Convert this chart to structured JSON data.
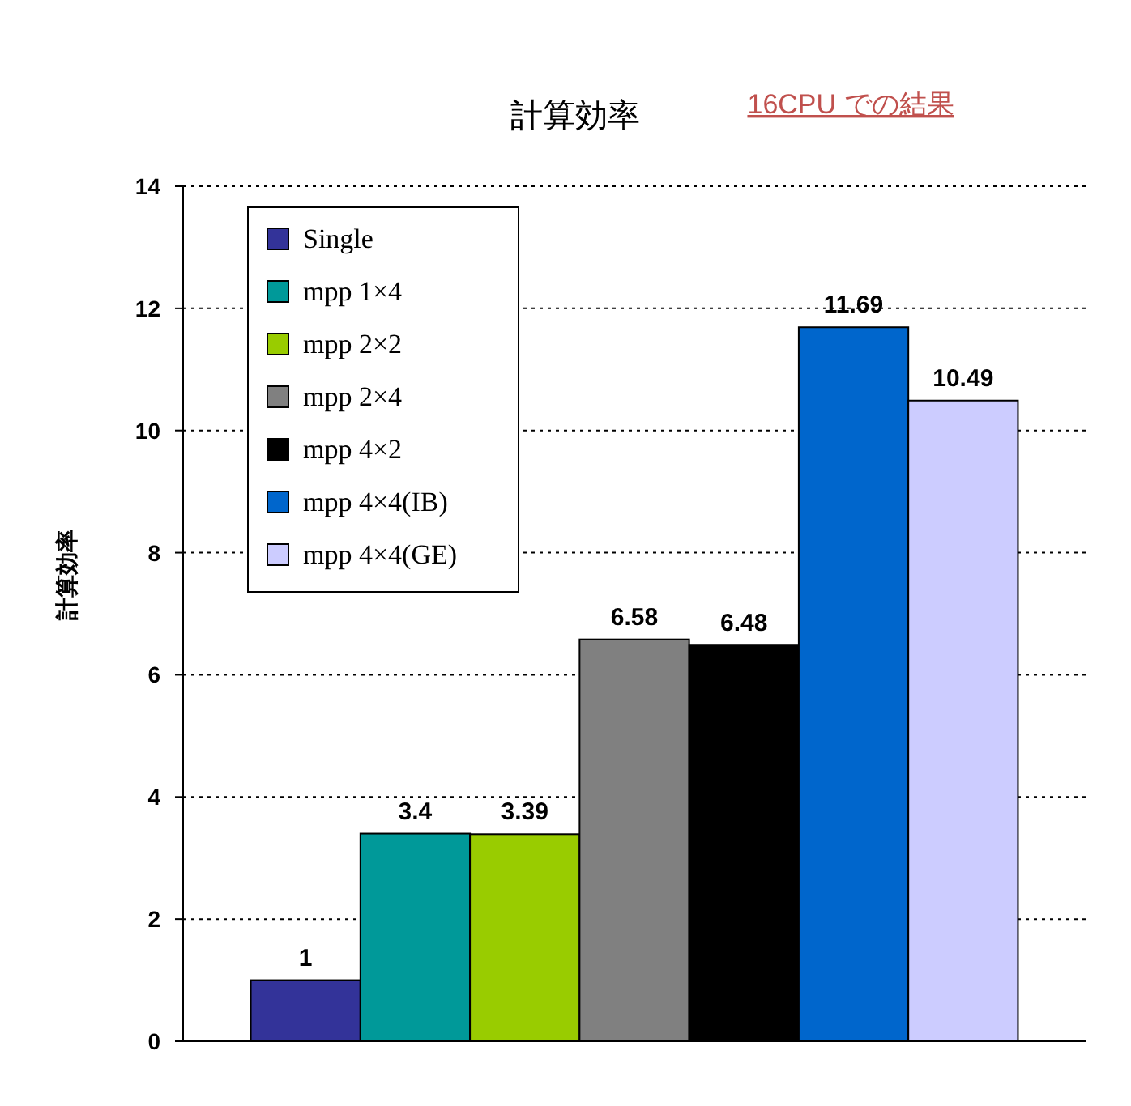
{
  "chart_data": {
    "type": "bar",
    "title": "計算効率",
    "subtitle": "16CPU での結果",
    "ylabel": "計算効率",
    "categories": [
      null
    ],
    "series": [
      {
        "name": "Single",
        "color": "#333399",
        "values": [
          1
        ]
      },
      {
        "name": "mpp 1×4",
        "color": "#009999",
        "values": [
          3.4
        ]
      },
      {
        "name": "mpp 2×2",
        "color": "#99cc00",
        "values": [
          3.39
        ]
      },
      {
        "name": "mpp 2×4",
        "color": "#808080",
        "values": [
          6.58
        ]
      },
      {
        "name": "mpp 4×2",
        "color": "#000000",
        "values": [
          6.48
        ]
      },
      {
        "name": "mpp 4×4(IB)",
        "color": "#0066cc",
        "values": [
          11.69
        ]
      },
      {
        "name": "mpp 4×4(GE)",
        "color": "#ccccff",
        "values": [
          10.49
        ]
      }
    ],
    "ylim": [
      0,
      14
    ],
    "yticks": [
      0,
      2,
      4,
      6,
      8,
      10,
      12,
      14
    ],
    "grid": "y",
    "legend": "top left",
    "data_labels": true
  }
}
